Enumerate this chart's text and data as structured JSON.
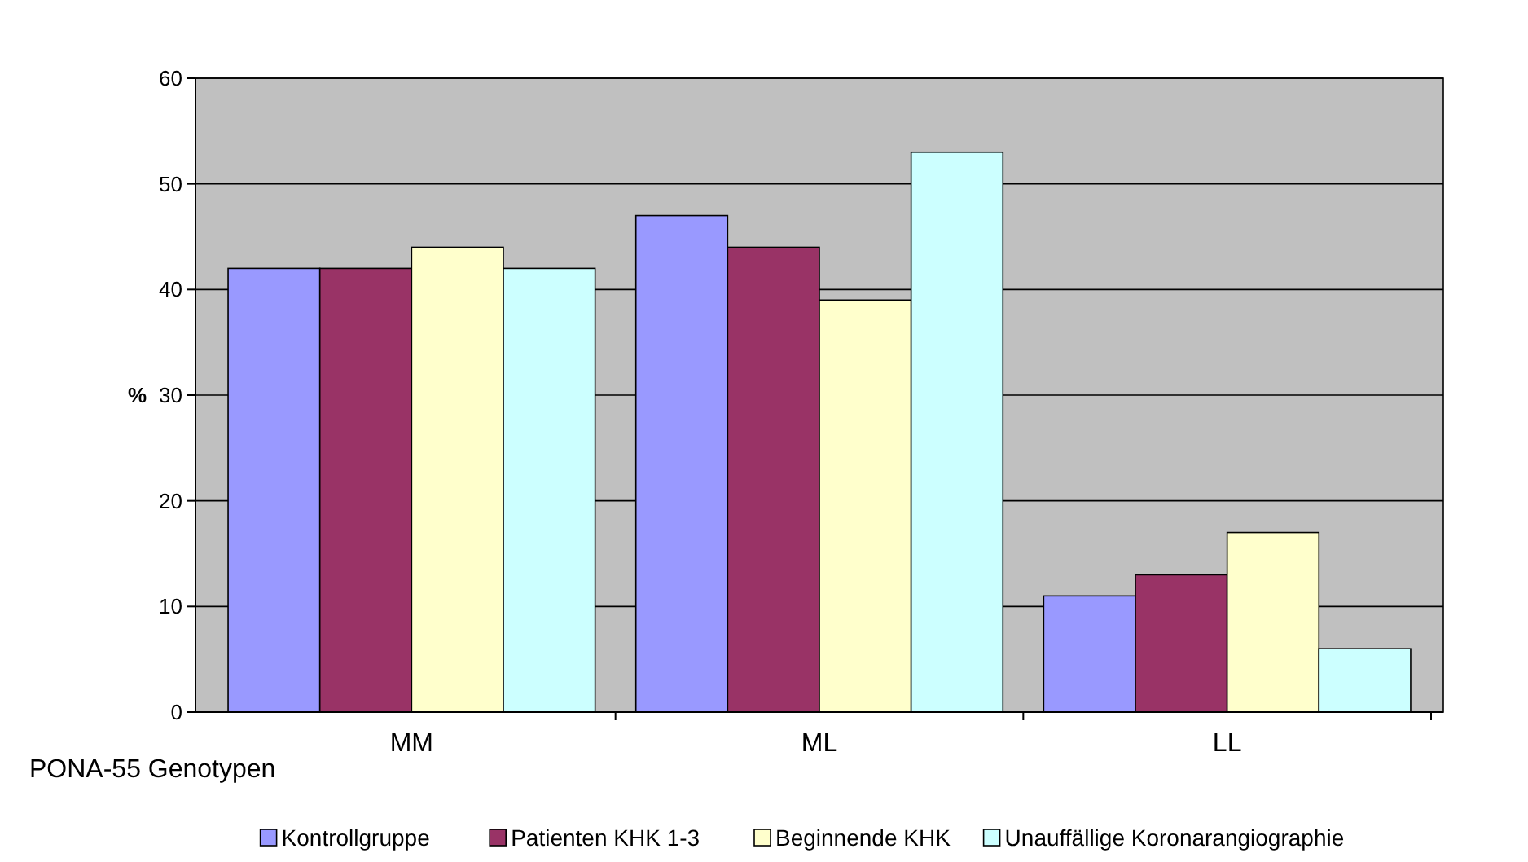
{
  "chart_data": {
    "type": "bar",
    "xlabel": "PONA-55 Genotypen",
    "ylabel": "%",
    "categories": [
      "MM",
      "ML",
      "LL"
    ],
    "series": [
      {
        "name": "Kontrollgruppe",
        "color": "#9999ff",
        "values": [
          42,
          47,
          11
        ]
      },
      {
        "name": "Patienten KHK 1-3",
        "color": "#993366",
        "values": [
          42,
          44,
          13
        ]
      },
      {
        "name": "Beginnende KHK",
        "color": "#ffffcc",
        "values": [
          44,
          39,
          17
        ]
      },
      {
        "name": "Unauffällige Koronarangiographie",
        "color": "#ccffff",
        "values": [
          42,
          53,
          6
        ]
      }
    ],
    "ylim": [
      0,
      60
    ],
    "yticks": [
      0,
      10,
      20,
      30,
      40,
      50,
      60
    ],
    "grid": "y",
    "legend": "bottom"
  }
}
